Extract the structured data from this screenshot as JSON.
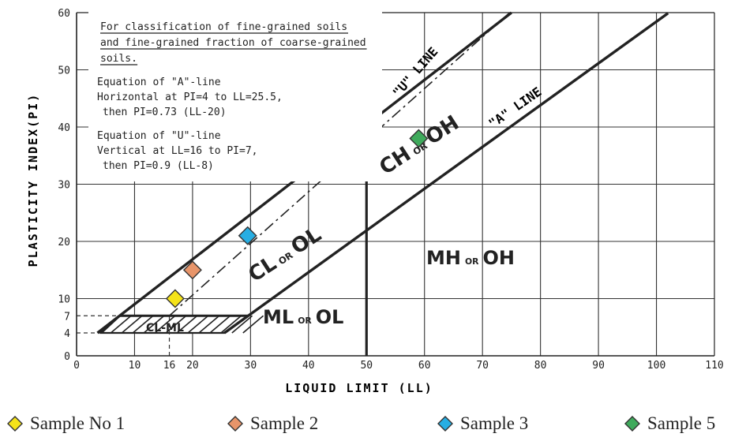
{
  "chart_data": {
    "type": "scatter",
    "xlabel": "LIQUID LIMIT (LL)",
    "ylabel": "PLASTICITY INDEX(PI)",
    "xlim": [
      0,
      110
    ],
    "ylim": [
      0,
      60
    ],
    "x_ticks": [
      0,
      10,
      16,
      20,
      30,
      40,
      50,
      60,
      70,
      80,
      90,
      100,
      110
    ],
    "y_ticks": [
      0,
      4,
      7,
      10,
      20,
      30,
      40,
      50,
      60
    ],
    "grid": true,
    "grid_x": [
      10,
      20,
      30,
      40,
      50,
      60,
      70,
      80,
      90,
      100
    ],
    "grid_y": [
      10,
      20,
      30,
      40,
      50
    ],
    "lines": {
      "a_line_label": "\"A\" LINE",
      "u_line_label": "\"U\" LINE",
      "a_line": {
        "points": [
          [
            4,
            4
          ],
          [
            25.5,
            4
          ],
          [
            25.5,
            4
          ],
          [
            102,
            59.86
          ]
        ],
        "note": "PI = 0.73 (LL-20)"
      },
      "u_line": {
        "points": [
          [
            16,
            0
          ],
          [
            16,
            7
          ],
          [
            16,
            7
          ],
          [
            74.7,
            60
          ]
        ],
        "note": "PI = 0.9 (LL-8)"
      }
    },
    "zones": [
      {
        "label_main": "CL",
        "label_small": "OR",
        "label_end": "OL"
      },
      {
        "label_main": "CH",
        "label_small": "OR",
        "label_end": "OH"
      },
      {
        "label_main": "MH",
        "label_small": "OR",
        "label_end": "OH"
      },
      {
        "label_main": "ML",
        "label_small": "OR",
        "label_end": "OL"
      },
      {
        "label_main": "CL-ML"
      }
    ],
    "notes": [
      "For classification of fine-grained soils",
      "and fine-grained fraction of coarse-grained",
      "soils.",
      "Equation of \"A\"-line",
      "Horizontal at PI=4 to LL=25.5,",
      "then PI=0.73 (LL-20)",
      "Equation of \"U\"-line",
      "Vertical at LL=16 to PI=7,",
      "then PI=0.9 (LL-8)"
    ],
    "series": [
      {
        "name": "Sample No 1",
        "color": "#f5e31a",
        "points": [
          [
            17,
            10
          ]
        ]
      },
      {
        "name": "Sample 2",
        "color": "#e8956a",
        "points": [
          [
            20,
            15
          ]
        ]
      },
      {
        "name": "Sample 3",
        "color": "#27aee3",
        "points": [
          [
            29.5,
            21
          ]
        ]
      },
      {
        "name": "Sample 5",
        "color": "#3faa5c",
        "points": [
          [
            59,
            38
          ]
        ]
      }
    ],
    "legend_position": "bottom"
  }
}
